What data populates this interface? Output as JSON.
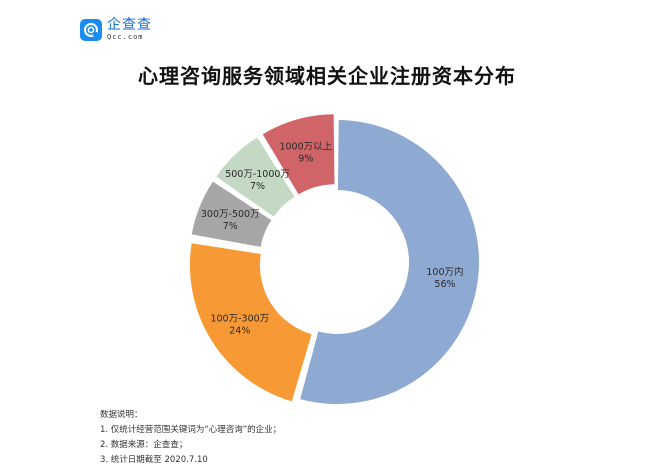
{
  "logo": {
    "name_cn": "企查查",
    "domain": "Qcc.com",
    "icon": "qcc-logo-icon",
    "brand_color": "#1a8cf0"
  },
  "title": "心理咨询服务领域相关企业注册资本分布",
  "chart_data": {
    "type": "pie",
    "subtype": "donut",
    "title": "心理咨询服务领域相关企业注册资本分布",
    "start_angle": "12 o'clock, clockwise",
    "legend": "none (labels inside slices)",
    "slices": [
      {
        "label": "100万内",
        "value": 56,
        "percent_text": "56%",
        "color": "#8faad2"
      },
      {
        "label": "100万-300万",
        "value": 24,
        "percent_text": "24%",
        "color": "#f79a35"
      },
      {
        "label": "300万-500万",
        "value": 7,
        "percent_text": "7%",
        "color": "#a6a6a6"
      },
      {
        "label": "500万-1000万",
        "value": 7,
        "percent_text": "7%",
        "color": "#c4d9c4"
      },
      {
        "label": "1000万以上",
        "value": 9,
        "percent_text": "9%",
        "color": "#d06469"
      }
    ]
  },
  "notes": {
    "heading": "数据说明：",
    "items": [
      "1. 仅统计经营范围关键词为“心理咨询”的企业；",
      "2. 数据来源：企查查；",
      "3. 统计日期截至 2020.7.10"
    ]
  }
}
